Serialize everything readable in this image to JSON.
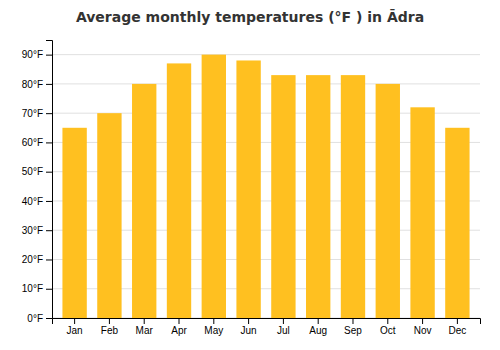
{
  "chart_data": {
    "type": "bar",
    "title": "Average monthly temperatures (°F ) in Ādra",
    "categories": [
      "Jan",
      "Feb",
      "Mar",
      "Apr",
      "May",
      "Jun",
      "Jul",
      "Aug",
      "Sep",
      "Oct",
      "Nov",
      "Dec"
    ],
    "values": [
      65,
      70,
      80,
      87,
      90,
      88,
      83,
      83,
      83,
      80,
      72,
      65
    ],
    "color": "#FFC020",
    "ylim": [
      0,
      95
    ],
    "yticks": [
      {
        "value": 0,
        "label": "0°F"
      },
      {
        "value": 10,
        "label": "10°F"
      },
      {
        "value": 20,
        "label": "20°F"
      },
      {
        "value": 30,
        "label": "30°F"
      },
      {
        "value": 40,
        "label": "40°F"
      },
      {
        "value": 50,
        "label": "50°F"
      },
      {
        "value": 60,
        "label": "60°F"
      },
      {
        "value": 70,
        "label": "70°F"
      },
      {
        "value": 80,
        "label": "80°F"
      },
      {
        "value": 90,
        "label": "90°F"
      }
    ],
    "grid": true
  }
}
